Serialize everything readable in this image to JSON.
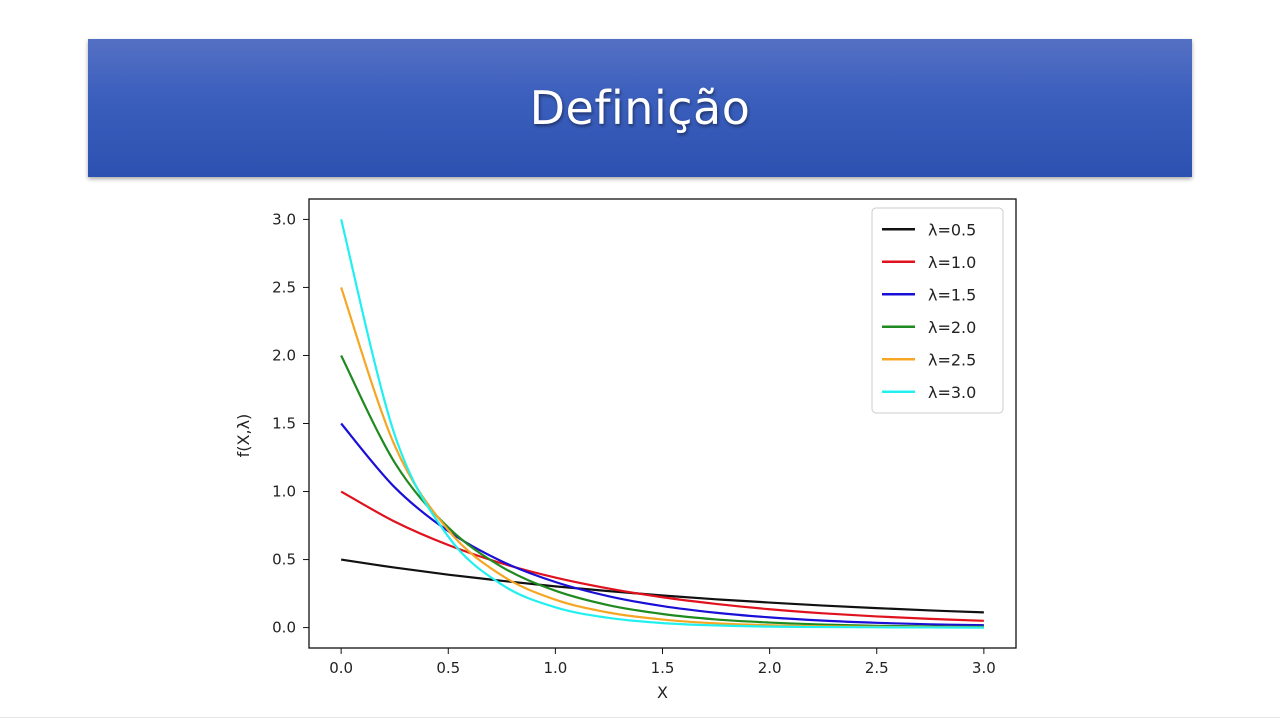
{
  "slide": {
    "title": "Definição"
  },
  "chart_data": {
    "type": "line",
    "xlabel": "X",
    "ylabel": "f(X,λ)",
    "xlim": [
      -0.15,
      3.15
    ],
    "ylim": [
      -0.15,
      3.15
    ],
    "x_ticks": [
      "0.0",
      "0.5",
      "1.0",
      "1.5",
      "2.0",
      "2.5",
      "3.0"
    ],
    "y_ticks": [
      "0.0",
      "0.5",
      "1.0",
      "1.5",
      "2.0",
      "2.5",
      "3.0"
    ],
    "grid": false,
    "legend_position": "top-right",
    "x": [
      0.0,
      0.25,
      0.5,
      0.75,
      1.0,
      1.25,
      1.5,
      1.75,
      2.0,
      2.25,
      2.5,
      2.75,
      3.0
    ],
    "series": [
      {
        "name": "λ=0.5",
        "color": "#111111",
        "values": [
          0.5,
          0.441,
          0.389,
          0.344,
          0.303,
          0.268,
          0.236,
          0.208,
          0.184,
          0.162,
          0.143,
          0.126,
          0.112
        ]
      },
      {
        "name": "λ=1.0",
        "color": "#e0121e",
        "values": [
          1.0,
          0.779,
          0.607,
          0.472,
          0.368,
          0.287,
          0.223,
          0.174,
          0.135,
          0.105,
          0.082,
          0.064,
          0.05
        ]
      },
      {
        "name": "λ=1.5",
        "color": "#1a0fd6",
        "values": [
          1.5,
          1.031,
          0.709,
          0.487,
          0.335,
          0.23,
          0.158,
          0.109,
          0.075,
          0.051,
          0.035,
          0.024,
          0.017
        ]
      },
      {
        "name": "λ=2.0",
        "color": "#1f8a1f",
        "values": [
          2.0,
          1.213,
          0.736,
          0.446,
          0.271,
          0.164,
          0.1,
          0.06,
          0.037,
          0.022,
          0.013,
          0.008,
          0.005
        ]
      },
      {
        "name": "λ=2.5",
        "color": "#f5a623",
        "values": [
          2.5,
          1.338,
          0.716,
          0.383,
          0.205,
          0.11,
          0.059,
          0.031,
          0.017,
          0.009,
          0.005,
          0.003,
          0.001
        ]
      },
      {
        "name": "λ=3.0",
        "color": "#22f0f0",
        "values": [
          3.0,
          1.417,
          0.669,
          0.316,
          0.149,
          0.071,
          0.033,
          0.016,
          0.007,
          0.004,
          0.002,
          0.001,
          0.0
        ]
      }
    ]
  }
}
